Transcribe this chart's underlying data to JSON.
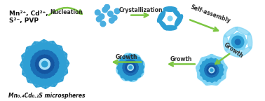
{
  "bg_color": "#ffffff",
  "line1": "Mn²⁺, Cd²⁺,",
  "line2": "S²⁻, PVP",
  "text_product": "Mn₀.₄Cd₀.₂S microspheres",
  "dot_color": "#4aaee0",
  "petal_light": "#7dd4f5",
  "petal_mid": "#2e9fd4",
  "petal_dark": "#1a6db5",
  "petal_darkest": "#1455a0",
  "center_light": "#a8e0f8",
  "arrow_color": "#7cc642",
  "label_color": "#2a2a2a",
  "label_fs": 5.5,
  "reagent_fs": 6.5,
  "product_fs": 5.5
}
